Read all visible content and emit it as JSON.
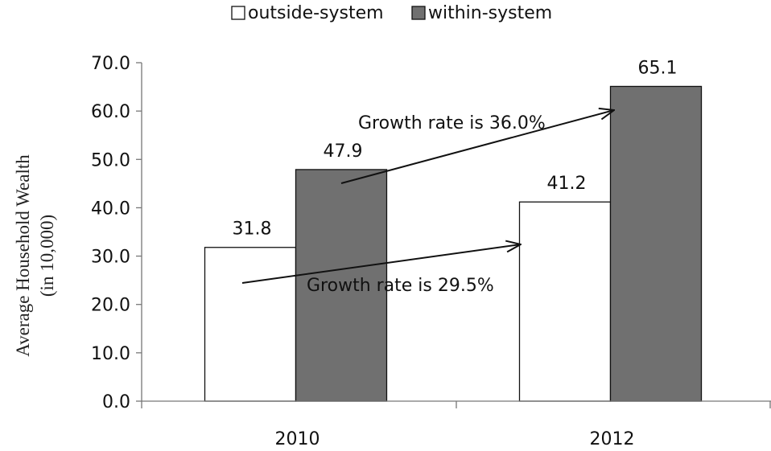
{
  "chart_data": {
    "type": "bar",
    "categories": [
      "2010",
      "2012"
    ],
    "series": [
      {
        "name": "outside-system",
        "values": [
          31.8,
          41.2
        ],
        "color": "#ffffff"
      },
      {
        "name": "within-system",
        "values": [
          47.9,
          65.1
        ],
        "color": "#707070"
      }
    ],
    "value_labels": [
      [
        "31.8",
        "41.2"
      ],
      [
        "47.9",
        "65.1"
      ]
    ],
    "ylabel_line1": "Average Household Wealth",
    "ylabel_line2": "(in 10,000)",
    "xlabel": "",
    "ylim": [
      0,
      70
    ],
    "yticks": [
      "0.0",
      "10.0",
      "20.0",
      "30.0",
      "40.0",
      "50.0",
      "60.0",
      "70.0"
    ],
    "grid": false,
    "legend_position": "top",
    "annotations": [
      {
        "text": "Growth rate is 36.0%",
        "series": "within-system",
        "from": "2010",
        "to": "2012"
      },
      {
        "text": "Growth rate is 29.5%",
        "series": "outside-system",
        "from": "2010",
        "to": "2012"
      }
    ]
  }
}
